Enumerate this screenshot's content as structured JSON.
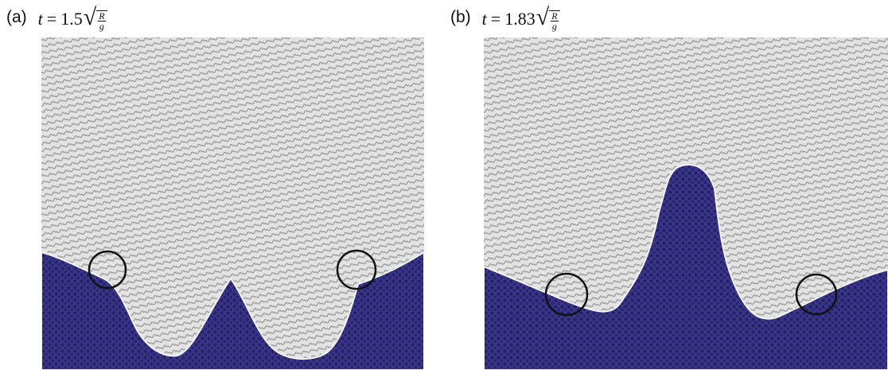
{
  "figure": {
    "colors": {
      "background": "#ffffff",
      "upper_fluid": "#e3e3e3",
      "upper_stripe": "#9b9b9b",
      "lower_fluid": "#3b3787",
      "lower_dot": "#241f66",
      "circle_outline": "#111111"
    },
    "panels": [
      {
        "label": "(a)",
        "time_prefix": "t",
        "equals": "=",
        "time_value": "1.5",
        "sqrt_numerator": "R",
        "sqrt_denominator": "g",
        "circle_markers": 2
      },
      {
        "label": "(b)",
        "time_prefix": "t",
        "equals": "=",
        "time_value": "1.83",
        "sqrt_numerator": "R",
        "sqrt_denominator": "g",
        "circle_markers": 2
      }
    ]
  }
}
